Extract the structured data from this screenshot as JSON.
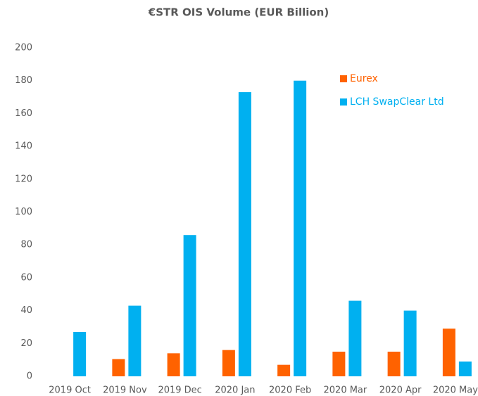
{
  "chart_data": {
    "type": "bar",
    "title": "€STR OIS Volume (EUR Billion)",
    "categories": [
      "2019 Oct",
      "2019 Nov",
      "2019 Dec",
      "2020 Jan",
      "2020 Feb",
      "2020 Mar",
      "2020 Apr",
      "2020 May"
    ],
    "series": [
      {
        "name": "Eurex",
        "color": "#ff6200",
        "values": [
          0,
          10.5,
          14,
          16,
          7,
          15,
          15,
          29
        ]
      },
      {
        "name": "LCH SwapClear Ltd",
        "color": "#00b0f0",
        "values": [
          27,
          43,
          86,
          173,
          180,
          46,
          40,
          9
        ]
      }
    ],
    "ylim": [
      0,
      200
    ],
    "yticks": [
      0,
      20,
      40,
      60,
      80,
      100,
      120,
      140,
      160,
      180,
      200
    ],
    "grid": false,
    "legend": "top-right"
  }
}
